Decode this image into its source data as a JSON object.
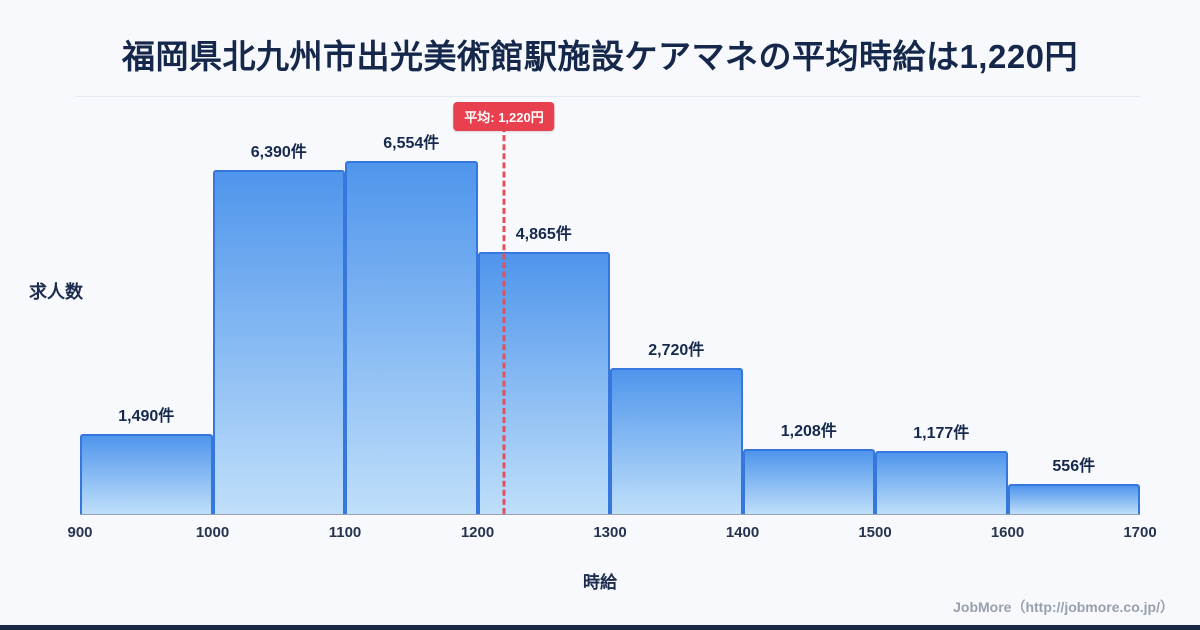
{
  "title": "福岡県北九州市出光美術館駅施設ケアマネの平均時給は1,220円",
  "chart_data": {
    "type": "bar",
    "title": "福岡県北九州市出光美術館駅施設ケアマネの平均時給は1,220円",
    "xlabel": "時給",
    "ylabel": "求人数",
    "bin_edges": [
      900,
      1000,
      1100,
      1200,
      1300,
      1400,
      1500,
      1600,
      1700
    ],
    "values": [
      1490,
      6390,
      6554,
      4865,
      2720,
      1208,
      1177,
      556
    ],
    "value_labels": [
      "1,490件",
      "6,390件",
      "6,554件",
      "4,865件",
      "2,720件",
      "1,208件",
      "1,177件",
      "556件"
    ],
    "x_tick_labels": [
      "900",
      "1000",
      "1100",
      "1200",
      "1300",
      "1400",
      "1500",
      "1600",
      "1700"
    ],
    "average": {
      "value": 1220,
      "label": "平均: 1,220円"
    },
    "grid": false,
    "legend": false,
    "colors": {
      "background": "#f7f9fc",
      "bar_fill_top": "#4f95ec",
      "bar_fill_bottom": "#bfdffa",
      "bar_border": "#3577dc",
      "average_line": "#e4505a",
      "badge_bg": "#e8404e",
      "badge_text": "#ffffff",
      "title_text": "#15284b",
      "axis_text": "#25344f",
      "footer_text": "#98a0ad",
      "bottom_bar": "#1b2946"
    }
  },
  "footer": {
    "credit": "JobMore（http://jobmore.co.jp/）"
  }
}
